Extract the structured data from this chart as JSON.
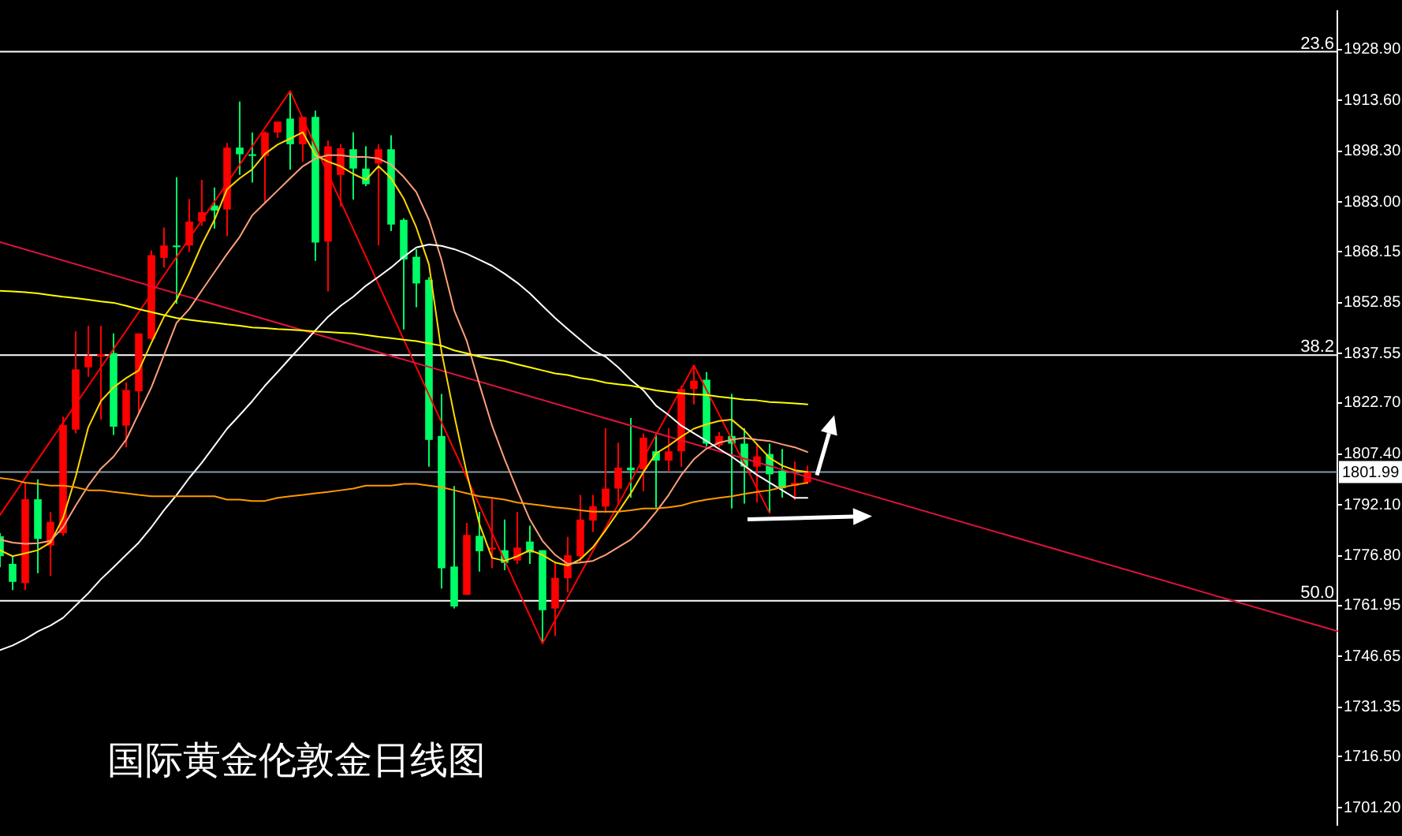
{
  "chart_data": {
    "type": "candlestick",
    "title": "国际黄金伦敦金日线图",
    "categories": [
      null,
      null,
      null,
      null,
      null,
      null,
      null,
      null,
      null,
      null,
      null,
      null,
      null,
      null,
      null,
      null,
      null,
      null,
      null,
      null,
      null,
      null,
      null,
      null,
      null,
      null,
      null,
      null,
      null,
      null,
      null,
      null,
      null,
      null,
      null,
      null,
      null,
      null,
      null,
      null,
      null,
      null,
      null,
      null,
      null,
      null,
      null,
      null,
      null,
      null,
      null,
      null,
      null,
      null,
      null,
      null,
      null,
      null,
      null,
      null,
      null,
      null,
      null,
      null,
      null,
      null,
      null,
      null,
      null,
      null,
      null,
      null,
      null,
      null,
      null,
      null,
      null,
      null,
      null,
      null,
      null,
      null,
      null,
      null,
      null,
      null,
      null,
      null,
      null,
      null,
      null,
      null,
      null,
      null,
      null,
      null,
      null,
      null,
      null,
      null,
      null,
      null,
      null,
      null,
      null,
      null,
      null
    ],
    "ohlc": [
      [
        1782.7,
        1783.6,
        1773.4,
        1776.7
      ],
      [
        1774.4,
        1776.7,
        1766.5,
        1769.0
      ],
      [
        1768.6,
        1798.9,
        1766.5,
        1793.8
      ],
      [
        1793.8,
        1799.8,
        1771.6,
        1781.9
      ],
      [
        1779.9,
        1790.0,
        1770.8,
        1787.0
      ],
      [
        1783.6,
        1818.6,
        1782.8,
        1816.1
      ],
      [
        1814.7,
        1844.2,
        1813.6,
        1832.8
      ],
      [
        1833.4,
        1845.9,
        1830.6,
        1836.9
      ],
      [
        1836.6,
        1845.9,
        1817.7,
        1837.4
      ],
      [
        1837.7,
        1843.6,
        1813.1,
        1815.6
      ],
      [
        1815.9,
        1828.9,
        1809.4,
        1826.6
      ],
      [
        1826.2,
        1843.6,
        1819.3,
        1843.6
      ],
      [
        1842.0,
        1868.5,
        1841.7,
        1867.1
      ],
      [
        1866.3,
        1875.4,
        1863.3,
        1870.0
      ],
      [
        1870.0,
        1890.5,
        1852.5,
        1869.5
      ],
      [
        1870.0,
        1884.0,
        1868.1,
        1877.2
      ],
      [
        1877.2,
        1889.7,
        1875.9,
        1880.0
      ],
      [
        1882.0,
        1887.4,
        1875.1,
        1880.5
      ],
      [
        1880.8,
        1900.8,
        1872.8,
        1899.4
      ],
      [
        1899.4,
        1913.2,
        1891.2,
        1897.4
      ],
      [
        1897.4,
        1903.9,
        1888.9,
        1896.9
      ],
      [
        1896.9,
        1904.3,
        1882.8,
        1903.9
      ],
      [
        1903.9,
        1907.2,
        1902.3,
        1907.2
      ],
      [
        1908.1,
        1916.4,
        1892.8,
        1900.4
      ],
      [
        1900.4,
        1908.6,
        1895.1,
        1908.6
      ],
      [
        1908.6,
        1910.5,
        1865.4,
        1870.9
      ],
      [
        1871.2,
        1901.5,
        1856.2,
        1899.8
      ],
      [
        1891.2,
        1900.4,
        1881.7,
        1899.2
      ],
      [
        1898.9,
        1904.0,
        1883.8,
        1893.1
      ],
      [
        1893.1,
        1899.8,
        1887.8,
        1888.4
      ],
      [
        1894.6,
        1900.4,
        1870.0,
        1898.9
      ],
      [
        1898.9,
        1903.1,
        1874.3,
        1876.3
      ],
      [
        1877.7,
        1878.2,
        1844.8,
        1865.8
      ],
      [
        1866.6,
        1868.9,
        1851.5,
        1858.6
      ],
      [
        1859.7,
        1860.5,
        1803.6,
        1811.6
      ],
      [
        1812.8,
        1825.4,
        1767.0,
        1773.1
      ],
      [
        1773.6,
        1797.8,
        1761.0,
        1761.6
      ],
      [
        1765.1,
        1786.7,
        1765.1,
        1783.1
      ],
      [
        1782.8,
        1790.0,
        1772.1,
        1778.2
      ],
      [
        1778.7,
        1794.3,
        1773.1,
        1779.3
      ],
      [
        1778.5,
        1787.7,
        1772.5,
        1774.7
      ],
      [
        1775.4,
        1790.0,
        1774.4,
        1779.3
      ],
      [
        1781.1,
        1785.9,
        1774.4,
        1777.8
      ],
      [
        1778.5,
        1778.5,
        1750.5,
        1760.5
      ],
      [
        1761.0,
        1774.7,
        1752.8,
        1770.2
      ],
      [
        1770.1,
        1782.5,
        1765.9,
        1777.0
      ],
      [
        1776.7,
        1795.1,
        1774.7,
        1787.7
      ],
      [
        1787.4,
        1795.1,
        1784.0,
        1791.7
      ],
      [
        1791.6,
        1815.1,
        1789.7,
        1797.0
      ],
      [
        1797.0,
        1810.8,
        1792.0,
        1803.3
      ],
      [
        1803.3,
        1818.2,
        1794.3,
        1802.5
      ],
      [
        1802.8,
        1813.6,
        1796.2,
        1812.3
      ],
      [
        1808.2,
        1813.6,
        1791.3,
        1805.4
      ],
      [
        1805.4,
        1815.1,
        1802.0,
        1808.2
      ],
      [
        1808.2,
        1827.9,
        1803.6,
        1826.9
      ],
      [
        1826.9,
        1834.0,
        1822.3,
        1829.4
      ],
      [
        1829.7,
        1832.0,
        1809.7,
        1810.5
      ],
      [
        1810.0,
        1814.0,
        1809.4,
        1812.8
      ],
      [
        1812.8,
        1825.4,
        1791.0,
        1810.5
      ],
      [
        1810.5,
        1815.1,
        1792.5,
        1803.6
      ],
      [
        1803.6,
        1810.5,
        1792.8,
        1806.7
      ],
      [
        1807.4,
        1810.5,
        1789.7,
        1801.3
      ],
      [
        1802.4,
        1808.9,
        1794.3,
        1797.1
      ],
      [
        1797.8,
        1805.1,
        1793.6,
        1798.7
      ],
      [
        1798.9,
        1803.9,
        1798.3,
        1801.99
      ],
      null,
      null,
      null,
      null,
      null,
      null,
      null,
      null,
      null,
      null,
      null,
      null,
      null,
      null,
      null,
      null,
      null,
      null,
      null,
      null,
      null,
      null,
      null,
      null,
      null,
      null,
      null,
      null,
      null,
      null,
      null,
      null,
      null,
      null,
      null,
      null,
      null,
      null,
      null,
      null,
      null,
      null
    ],
    "colors": [
      "#00ff66",
      "#00ff66",
      "#ff0000",
      "#00ff66",
      "#ff0000",
      "#ff0000",
      "#ff0000",
      "#ff0000",
      "#ff0000",
      "#00ff66",
      "#ff0000",
      "#ff0000",
      "#ff0000",
      "#ff0000",
      "#00ff66",
      "#ff0000",
      "#ff0000",
      "#00ff66",
      "#ff0000",
      "#00ff66",
      "#00ff66",
      "#ff0000",
      "#ff0000",
      "#00ff66",
      "#ff0000",
      "#00ff66",
      "#ff0000",
      "#ff0000",
      "#00ff66",
      "#00ff66",
      "#ff0000",
      "#00ff66",
      "#00ff66",
      "#00ff66",
      "#00ff66",
      "#00ff66",
      "#00ff66",
      "#ff0000",
      "#00ff66",
      "#ff0000",
      "#00ff66",
      "#ff0000",
      "#00ff66",
      "#00ff66",
      "#ff0000",
      "#ff0000",
      "#ff0000",
      "#ff0000",
      "#ff0000",
      "#ff0000",
      "#00ff66",
      "#ff0000",
      "#00ff66",
      "#ff0000",
      "#ff0000",
      "#ff0000",
      "#00ff66",
      "#ff0000",
      "#00ff66",
      "#00ff66",
      "#ff0000",
      "#00ff66",
      "#00ff66",
      "#ff0000",
      "#ff0000",
      null,
      null,
      null,
      null,
      null,
      null,
      null,
      null,
      null,
      null,
      null,
      null,
      null,
      null,
      null,
      null,
      null,
      null,
      null,
      null,
      null,
      null,
      null,
      null,
      null,
      null,
      null,
      null,
      null,
      null,
      null,
      null,
      null,
      null,
      null,
      null,
      null,
      null,
      null,
      null,
      null,
      null
    ],
    "series": [
      {
        "type": "line",
        "color": "#ffff00",
        "values": [
          1856.4,
          1856.2,
          1856.0,
          1855.6,
          1855.1,
          1854.6,
          1854.2,
          1853.7,
          1853.2,
          1852.8,
          1851.9,
          1850.9,
          1850.0,
          1849.1,
          1848.2,
          1847.7,
          1847.2,
          1846.8,
          1846.3,
          1845.9,
          1845.4,
          1845.2,
          1844.9,
          1844.7,
          1844.5,
          1844.2,
          1844.0,
          1843.8,
          1843.6,
          1843.1,
          1842.6,
          1842.2,
          1841.7,
          1841.3,
          1840.6,
          1839.9,
          1838.5,
          1837.6,
          1836.6,
          1835.9,
          1835.3,
          1834.3,
          1833.4,
          1832.5,
          1831.6,
          1831.1,
          1830.2,
          1829.7,
          1828.8,
          1828.3,
          1827.9,
          1827.2,
          1826.5,
          1826.0,
          1825.6,
          1825.3,
          1825.1,
          1824.6,
          1824.2,
          1823.7,
          1823.5,
          1823.0,
          1822.8,
          1822.6,
          1822.3,
          null,
          null,
          null,
          null,
          null,
          null,
          null,
          null,
          null,
          null,
          null,
          null,
          null,
          null,
          null,
          null,
          null,
          null,
          null,
          null,
          null,
          null,
          null,
          null,
          null,
          null,
          null,
          null,
          null,
          null,
          null,
          null,
          null,
          null,
          null,
          null,
          null,
          null,
          null,
          null,
          null,
          null
        ]
      },
      {
        "type": "line",
        "color": "#ff9900",
        "values": [
          1800.2,
          1799.7,
          1798.8,
          1798.4,
          1797.9,
          1797.9,
          1797.4,
          1796.5,
          1796.5,
          1796.0,
          1795.6,
          1795.1,
          1794.7,
          1794.7,
          1794.7,
          1794.7,
          1794.7,
          1794.7,
          1793.7,
          1793.7,
          1793.3,
          1793.3,
          1794.2,
          1794.7,
          1795.1,
          1795.6,
          1796.0,
          1796.5,
          1797.0,
          1797.9,
          1797.9,
          1797.9,
          1798.4,
          1798.4,
          1797.9,
          1797.4,
          1796.5,
          1795.6,
          1794.7,
          1794.2,
          1793.7,
          1792.8,
          1792.4,
          1791.9,
          1791.4,
          1791.0,
          1790.5,
          1790.1,
          1790.1,
          1790.1,
          1790.5,
          1791.0,
          1791.0,
          1791.4,
          1791.9,
          1793.0,
          1793.7,
          1794.2,
          1794.7,
          1795.4,
          1796.0,
          1796.5,
          1797.4,
          1798.1,
          1798.8,
          null,
          null,
          null,
          null,
          null,
          null,
          null,
          null,
          null,
          null,
          null,
          null,
          null,
          null,
          null,
          null,
          null,
          null,
          null,
          null,
          null,
          null,
          null,
          null,
          null,
          null,
          null,
          null,
          null,
          null,
          null,
          null,
          null,
          null,
          null,
          null,
          null,
          null,
          null,
          null,
          null,
          null
        ]
      },
      {
        "type": "line",
        "color": "#ffffff",
        "values": [
          1748.5,
          1749.9,
          1751.8,
          1754.1,
          1755.9,
          1758.2,
          1761.9,
          1765.6,
          1769.8,
          1773.4,
          1777.1,
          1780.8,
          1785.4,
          1790.5,
          1795.1,
          1800.2,
          1804.8,
          1809.9,
          1815.0,
          1819.1,
          1823.3,
          1827.9,
          1832.0,
          1836.2,
          1840.3,
          1844.5,
          1848.6,
          1851.9,
          1854.6,
          1857.9,
          1860.6,
          1863.4,
          1866.6,
          1869.4,
          1870.3,
          1869.9,
          1868.9,
          1867.5,
          1865.7,
          1863.9,
          1861.5,
          1858.8,
          1855.6,
          1851.9,
          1848.2,
          1844.9,
          1841.7,
          1838.5,
          1836.6,
          1833.4,
          1829.7,
          1826.5,
          1821.9,
          1819.1,
          1815.9,
          1813.6,
          1811.3,
          1808.9,
          1806.6,
          1803.9,
          1801.1,
          1798.8,
          1796.5,
          1794.2,
          1794.2,
          null,
          null,
          null,
          null,
          null,
          null,
          null,
          null,
          null,
          null,
          null,
          null,
          null,
          null,
          null,
          null,
          null,
          null,
          null,
          null,
          null,
          null,
          null,
          null,
          null,
          null,
          null,
          null,
          null,
          null,
          null,
          null,
          null,
          null,
          null,
          null,
          null,
          null,
          null,
          null,
          null,
          null
        ]
      },
      {
        "type": "line",
        "color": "#ffa07a",
        "values": [
          1781.7,
          1780.8,
          1780.4,
          1780.6,
          1781.3,
          1785.4,
          1791.9,
          1797.9,
          1803.0,
          1806.6,
          1811.7,
          1819.6,
          1827.4,
          1837.1,
          1846.8,
          1850.9,
          1856.5,
          1862.0,
          1867.5,
          1872.6,
          1879.1,
          1882.8,
          1886.5,
          1890.2,
          1893.8,
          1896.1,
          1897.1,
          1897.1,
          1896.6,
          1896.6,
          1896.1,
          1894.3,
          1890.6,
          1886.0,
          1877.7,
          1865.7,
          1850.5,
          1841.3,
          1828.3,
          1815.9,
          1805.8,
          1796.5,
          1787.7,
          1781.3,
          1777.1,
          1774.4,
          1774.8,
          1775.3,
          1777.1,
          1779.4,
          1781.7,
          1785.4,
          1790.0,
          1795.1,
          1801.1,
          1805.8,
          1809.0,
          1810.8,
          1811.7,
          1812.2,
          1811.7,
          1811.3,
          1810.3,
          1809.4,
          1808.0,
          null,
          null,
          null,
          null,
          null,
          null,
          null,
          null,
          null,
          null,
          null,
          null,
          null,
          null,
          null,
          null,
          null,
          null,
          null,
          null,
          null,
          null,
          null,
          null,
          null,
          null,
          null,
          null,
          null,
          null,
          null,
          null,
          null,
          null,
          null,
          null,
          null,
          null,
          null,
          null,
          null,
          null
        ]
      },
      {
        "type": "line",
        "color": "#ffd700",
        "values": [
          1778.5,
          1776.7,
          1777.6,
          1778.5,
          1780.8,
          1788.2,
          1800.6,
          1815.4,
          1823.3,
          1827.4,
          1830.2,
          1832.5,
          1840.8,
          1848.6,
          1853.7,
          1861.6,
          1870.3,
          1877.7,
          1886.9,
          1890.2,
          1892.9,
          1897.5,
          1900.3,
          1902.1,
          1904.0,
          1897.1,
          1895.2,
          1893.8,
          1891.5,
          1889.7,
          1893.8,
          1890.2,
          1884.1,
          1875.4,
          1864.3,
          1838.0,
          1819.1,
          1801.6,
          1786.4,
          1776.2,
          1775.3,
          1776.7,
          1778.5,
          1777.1,
          1774.8,
          1773.9,
          1775.8,
          1779.4,
          1784.5,
          1790.0,
          1795.6,
          1802.0,
          1807.6,
          1809.9,
          1812.6,
          1815.0,
          1816.3,
          1817.3,
          1817.7,
          1814.5,
          1810.3,
          1806.2,
          1803.9,
          1802.5,
          1802.0,
          null,
          null,
          null,
          null,
          null,
          null,
          null,
          null,
          null,
          null,
          null,
          null,
          null,
          null,
          null,
          null,
          null,
          null,
          null,
          null,
          null,
          null,
          null,
          null,
          null,
          null,
          null,
          null,
          null,
          null,
          null,
          null,
          null,
          null,
          null,
          null,
          null,
          null,
          null,
          null,
          null,
          null
        ]
      },
      {
        "type": "line",
        "color": "#dc143c",
        "values": [
          1871.0,
          null,
          null,
          null,
          null,
          null,
          null,
          null,
          null,
          null,
          null,
          null,
          null,
          null,
          null,
          null,
          null,
          null,
          null,
          null,
          null,
          null,
          null,
          null,
          null,
          null,
          null,
          null,
          null,
          null,
          null,
          null,
          null,
          null,
          null,
          null,
          null,
          null,
          null,
          null,
          null,
          null,
          null,
          null,
          null,
          null,
          null,
          null,
          null,
          null,
          null,
          null,
          null,
          null,
          null,
          null,
          null,
          null,
          null,
          null,
          null,
          null,
          null,
          null,
          null,
          null,
          null,
          null,
          null,
          null,
          null,
          null,
          null,
          null,
          null,
          null,
          null,
          null,
          null,
          null,
          null,
          null,
          null,
          null,
          null,
          null,
          null,
          null,
          null,
          null,
          null,
          null,
          null,
          null,
          null,
          null,
          null,
          null,
          null,
          null,
          null,
          null,
          null,
          null,
          null,
          null,
          1754.2
        ]
      },
      {
        "type": "line",
        "color": "#ff0000",
        "values": [
          1789.1,
          null,
          null,
          null,
          null,
          null,
          null,
          null,
          null,
          null,
          null,
          null,
          null,
          null,
          null,
          null,
          null,
          null,
          null,
          null,
          null,
          null,
          null,
          1916.4,
          null,
          null,
          null,
          null,
          null,
          null,
          null,
          null,
          null,
          null,
          null,
          null,
          null,
          null,
          null,
          null,
          null,
          null,
          null,
          1750.5,
          null,
          null,
          null,
          null,
          null,
          null,
          null,
          null,
          null,
          null,
          null,
          1834.0,
          null,
          null,
          null,
          null,
          null,
          1789.7,
          null,
          null,
          null,
          null,
          null,
          null,
          null,
          null,
          null,
          null,
          null,
          null,
          null,
          null,
          null,
          null,
          null,
          null,
          null,
          null,
          null,
          null,
          null,
          null,
          null,
          null,
          null,
          null,
          null,
          null,
          null,
          null,
          null,
          null,
          null,
          null,
          null,
          null,
          null,
          null,
          null,
          null,
          null,
          null,
          null
        ]
      }
    ],
    "ylim": [
      1696.0,
      1940.4
    ],
    "yticks": [
      {
        "value": 1928.9,
        "label": "1928.90"
      },
      {
        "value": 1913.6,
        "label": "1913.60"
      },
      {
        "value": 1898.3,
        "label": "1898.30"
      },
      {
        "value": 1883,
        "label": "1883.00"
      },
      {
        "value": 1868.15,
        "label": "1868.15"
      },
      {
        "value": 1852.85,
        "label": "1852.85"
      },
      {
        "value": 1837.55,
        "label": "1837.55"
      },
      {
        "value": 1822.7,
        "label": "1822.70"
      },
      {
        "value": 1807.4,
        "label": "1807.40"
      },
      {
        "value": 1792.1,
        "label": "1792.10"
      },
      {
        "value": 1776.8,
        "label": "1776.80"
      },
      {
        "value": 1761.95,
        "label": "1761.95"
      },
      {
        "value": 1746.65,
        "label": "1746.65"
      },
      {
        "value": 1731.35,
        "label": "1731.35"
      },
      {
        "value": 1716.5,
        "label": "1716.50"
      },
      {
        "value": 1701.2,
        "label": "1701.20"
      }
    ],
    "ref_lines": [
      {
        "axis": "y",
        "value": 1928.2,
        "color": "#ffffff"
      },
      {
        "axis": "y",
        "value": 1837.1,
        "color": "#ffffff"
      },
      {
        "axis": "y",
        "value": 1763.3,
        "color": "#ffffff"
      },
      {
        "axis": "y",
        "value": 1801.99,
        "label": "1801.99",
        "color": "#8899aa"
      }
    ],
    "annotations": [
      {
        "text": "23.6",
        "y": 1928.2
      },
      {
        "text": "38.2",
        "y": 1837.1
      },
      {
        "text": "50.0",
        "y": 1763.3
      }
    ],
    "tick_labels": "y"
  }
}
